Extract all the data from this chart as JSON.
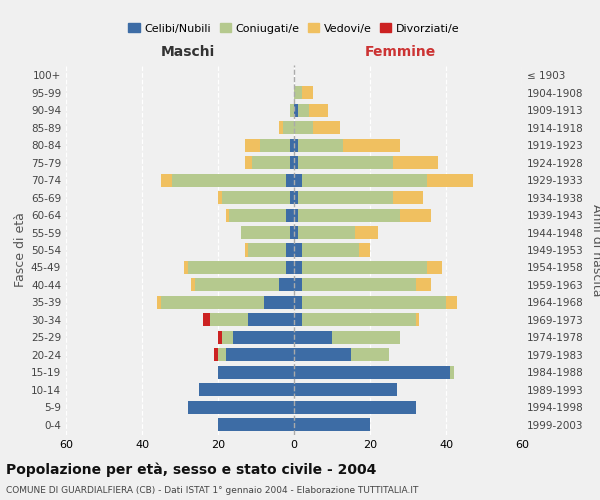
{
  "age_groups": [
    "0-4",
    "5-9",
    "10-14",
    "15-19",
    "20-24",
    "25-29",
    "30-34",
    "35-39",
    "40-44",
    "45-49",
    "50-54",
    "55-59",
    "60-64",
    "65-69",
    "70-74",
    "75-79",
    "80-84",
    "85-89",
    "90-94",
    "95-99",
    "100+"
  ],
  "birth_years": [
    "1999-2003",
    "1994-1998",
    "1989-1993",
    "1984-1988",
    "1979-1983",
    "1974-1978",
    "1969-1973",
    "1964-1968",
    "1959-1963",
    "1954-1958",
    "1949-1953",
    "1944-1948",
    "1939-1943",
    "1934-1938",
    "1929-1933",
    "1924-1928",
    "1919-1923",
    "1914-1918",
    "1909-1913",
    "1904-1908",
    "≤ 1903"
  ],
  "colors": {
    "celibi": "#3d6ca5",
    "coniugati": "#b5c98e",
    "vedovi": "#f0c060",
    "divorziati": "#cc2222"
  },
  "maschi": {
    "celibi": [
      20,
      28,
      25,
      20,
      18,
      16,
      12,
      8,
      4,
      2,
      2,
      1,
      2,
      1,
      2,
      1,
      1,
      0,
      0,
      0,
      0
    ],
    "coniugati": [
      0,
      0,
      0,
      0,
      2,
      3,
      10,
      27,
      22,
      26,
      10,
      13,
      15,
      18,
      30,
      10,
      8,
      3,
      1,
      0,
      0
    ],
    "vedovi": [
      0,
      0,
      0,
      0,
      0,
      0,
      0,
      1,
      1,
      1,
      1,
      0,
      1,
      1,
      3,
      2,
      4,
      1,
      0,
      0,
      0
    ],
    "divorziati": [
      0,
      0,
      0,
      0,
      1,
      1,
      2,
      0,
      0,
      0,
      0,
      0,
      0,
      0,
      0,
      0,
      0,
      0,
      0,
      0,
      0
    ]
  },
  "femmine": {
    "celibi": [
      20,
      32,
      27,
      41,
      15,
      10,
      2,
      2,
      2,
      2,
      2,
      1,
      1,
      1,
      2,
      1,
      1,
      0,
      1,
      0,
      0
    ],
    "coniugati": [
      0,
      0,
      0,
      1,
      10,
      18,
      30,
      38,
      30,
      33,
      15,
      15,
      27,
      25,
      33,
      25,
      12,
      5,
      3,
      2,
      0
    ],
    "vedovi": [
      0,
      0,
      0,
      0,
      0,
      0,
      1,
      3,
      4,
      4,
      3,
      6,
      8,
      8,
      12,
      12,
      15,
      7,
      5,
      3,
      0
    ],
    "divorziati": [
      0,
      0,
      0,
      0,
      0,
      0,
      0,
      0,
      0,
      0,
      0,
      0,
      0,
      0,
      0,
      0,
      0,
      0,
      0,
      0,
      0
    ]
  },
  "xlim": 60,
  "title": "Popolazione per età, sesso e stato civile - 2004",
  "subtitle": "COMUNE DI GUARDIALFIERA (CB) - Dati ISTAT 1° gennaio 2004 - Elaborazione TUTTITALIA.IT",
  "legend_labels": [
    "Celibi/Nubili",
    "Coniugati/e",
    "Vedovi/e",
    "Divorziati/e"
  ],
  "ylabel_left": "Fasce di età",
  "ylabel_right": "Anni di nascita",
  "xlabel_left": "Maschi",
  "xlabel_right": "Femmine",
  "bg_color": "#f0f0f0",
  "bar_height": 0.75
}
